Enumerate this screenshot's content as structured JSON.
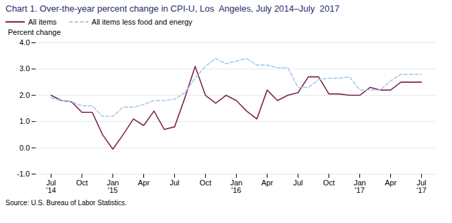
{
  "chart_data": {
    "type": "line",
    "title": "Chart 1. Over-the-year percent change in CPI-U, Los  Angeles, July 2014–July  2017",
    "y_label": "Percent change",
    "source": "Source: U.S. Bureau of Labor Statistics.",
    "categories": [
      "Jul\n'14",
      null,
      null,
      "Oct",
      null,
      null,
      "Jan\n'15",
      null,
      null,
      "Apr",
      null,
      null,
      "Jul",
      null,
      null,
      "Oct",
      null,
      null,
      "Jan\n'16",
      null,
      null,
      "Apr",
      null,
      null,
      "Jul",
      null,
      null,
      "Oct",
      null,
      null,
      "Jan\n'17",
      null,
      null,
      "Apr",
      null,
      null,
      "Jul\n'17"
    ],
    "series": [
      {
        "name": "All items",
        "color": "#7b2150",
        "line_style": "solid",
        "values": [
          2.0,
          1.8,
          1.75,
          1.35,
          1.35,
          0.5,
          -0.05,
          0.5,
          1.1,
          0.85,
          1.4,
          0.7,
          0.8,
          1.9,
          3.1,
          2.0,
          1.7,
          2.0,
          1.8,
          1.4,
          1.1,
          2.2,
          1.8,
          2.0,
          2.1,
          2.7,
          2.7,
          2.05,
          2.05,
          2.0,
          2.0,
          2.3,
          2.2,
          2.2,
          2.5,
          2.5,
          2.5
        ]
      },
      {
        "name": "All items less food and energy",
        "color": "#a8c8e8",
        "line_style": "dashed",
        "values": [
          1.9,
          1.8,
          1.75,
          1.6,
          1.6,
          1.2,
          1.2,
          1.55,
          1.55,
          1.65,
          1.8,
          1.8,
          1.85,
          2.1,
          2.65,
          3.1,
          3.4,
          3.2,
          3.3,
          3.4,
          3.15,
          3.15,
          3.05,
          3.05,
          2.3,
          2.3,
          2.6,
          2.65,
          2.65,
          2.7,
          2.2,
          2.2,
          2.2,
          2.55,
          2.8,
          2.8,
          2.8
        ]
      }
    ],
    "ylim": [
      -1.0,
      4.0
    ],
    "yticks": [
      {
        "value": -1.0,
        "label": "-1.0"
      },
      {
        "value": 0.0,
        "label": "0.0"
      },
      {
        "value": 1.0,
        "label": "1.0"
      },
      {
        "value": 2.0,
        "label": "2.0"
      },
      {
        "value": 3.0,
        "label": "3.0"
      },
      {
        "value": 4.0,
        "label": "4.0"
      }
    ],
    "grid": true,
    "legend": "upper left"
  }
}
